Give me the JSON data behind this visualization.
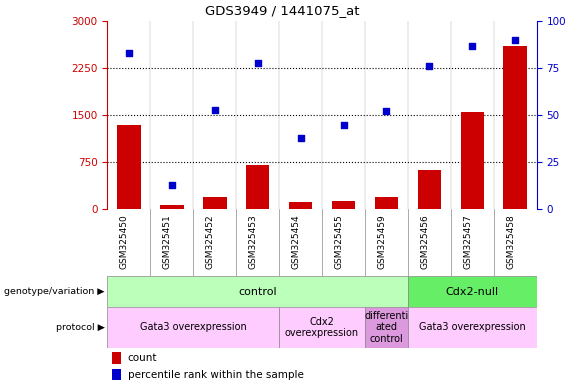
{
  "title": "GDS3949 / 1441075_at",
  "samples": [
    "GSM325450",
    "GSM325451",
    "GSM325452",
    "GSM325453",
    "GSM325454",
    "GSM325455",
    "GSM325459",
    "GSM325456",
    "GSM325457",
    "GSM325458"
  ],
  "counts": [
    1350,
    75,
    200,
    700,
    110,
    130,
    200,
    620,
    1550,
    2600
  ],
  "percentiles": [
    83,
    13,
    53,
    78,
    38,
    45,
    52,
    76,
    87,
    90
  ],
  "ylim_left": [
    0,
    3000
  ],
  "ylim_right": [
    0,
    100
  ],
  "yticks_left": [
    0,
    750,
    1500,
    2250,
    3000
  ],
  "yticks_right": [
    0,
    25,
    50,
    75,
    100
  ],
  "bar_color": "#cc0000",
  "scatter_color": "#0000cc",
  "background_color": "#ffffff",
  "xtick_bg": "#d0d0d0",
  "genotype_labels": [
    {
      "text": "control",
      "start": 0,
      "end": 6,
      "color": "#bbffbb"
    },
    {
      "text": "Cdx2-null",
      "start": 7,
      "end": 9,
      "color": "#66ee66"
    }
  ],
  "protocol_labels": [
    {
      "text": "Gata3 overexpression",
      "start": 0,
      "end": 3,
      "color": "#ffccff"
    },
    {
      "text": "Cdx2\noverexpression",
      "start": 4,
      "end": 5,
      "color": "#ffccff"
    },
    {
      "text": "differenti\nated\ncontrol",
      "start": 6,
      "end": 6,
      "color": "#dd99dd"
    },
    {
      "text": "Gata3 overexpression",
      "start": 7,
      "end": 9,
      "color": "#ffccff"
    }
  ],
  "legend_count_color": "#cc0000",
  "legend_pct_color": "#0000cc",
  "left_label_color": "#cc0000",
  "right_label_color": "#0000cc",
  "left_side_labels": [
    {
      "text": "genotype/variation",
      "row": "geno"
    },
    {
      "text": "protocol",
      "row": "proto"
    }
  ]
}
